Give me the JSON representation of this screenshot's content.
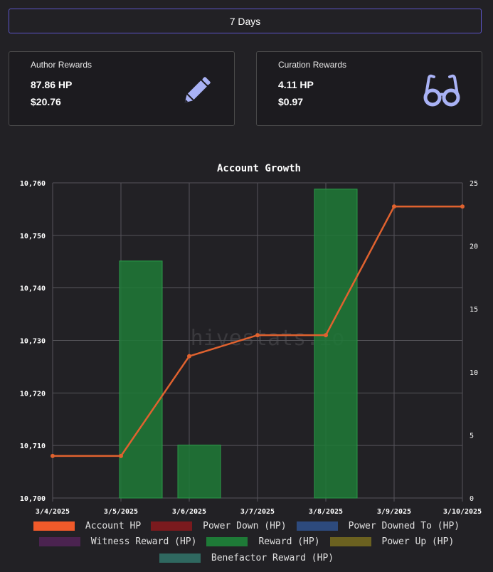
{
  "range_button": {
    "label": "7 Days"
  },
  "cards": {
    "author": {
      "title": "Author Rewards",
      "hp": "87.86 HP",
      "usd": "$20.76",
      "icon": "pencil-icon"
    },
    "curation": {
      "title": "Curation Rewards",
      "hp": "4.11 HP",
      "usd": "$0.97",
      "icon": "glasses-icon"
    }
  },
  "colors": {
    "accent_border": "#5c55c9",
    "icon": "#a9b2f5",
    "line": "#e0622f",
    "bar": "#1e7a37"
  },
  "chart_data": {
    "type": "bar",
    "title": "Account Growth",
    "watermark": "hivestats.io",
    "x": [
      "3/4/2025",
      "3/5/2025",
      "3/6/2025",
      "3/7/2025",
      "3/8/2025",
      "3/9/2025",
      "3/10/2025"
    ],
    "y_left": {
      "min": 10700,
      "max": 10760,
      "ticks": [
        "10,760",
        "10,750",
        "10,740",
        "10,730",
        "10,720",
        "10,710",
        "10,700"
      ]
    },
    "y_right": {
      "min": 0,
      "max": 25,
      "ticks": [
        "25",
        "20",
        "15",
        "10",
        "5",
        "0"
      ]
    },
    "grid": true,
    "legend_position": "bottom",
    "series": [
      {
        "name": "Account HP",
        "type": "line",
        "axis": "left",
        "color": "#e0622f",
        "values": [
          10708,
          10708,
          10727,
          10731,
          10731,
          10755.5,
          10755.5
        ]
      },
      {
        "name": "Reward (HP)",
        "type": "bar",
        "axis": "right",
        "color": "#1e7a37",
        "bars": [
          {
            "x": "3/5/2025",
            "value": 18.8
          },
          {
            "x": "3/6/2025",
            "value": 4.2
          },
          {
            "x": "3/8/2025",
            "value": 24.5
          }
        ]
      }
    ],
    "legend": [
      {
        "label": "Account HP",
        "color": "#f05a2a"
      },
      {
        "label": "Power Down (HP)",
        "color": "#7a1a1e"
      },
      {
        "label": "Power Downed To (HP)",
        "color": "#2d4a7d"
      },
      {
        "label": "Witness Reward (HP)",
        "color": "#4b2350"
      },
      {
        "label": "Reward (HP)",
        "color": "#1e7a37"
      },
      {
        "label": "Power Up (HP)",
        "color": "#6b6120"
      },
      {
        "label": "Benefactor Reward (HP)",
        "color": "#2f6860"
      }
    ]
  }
}
